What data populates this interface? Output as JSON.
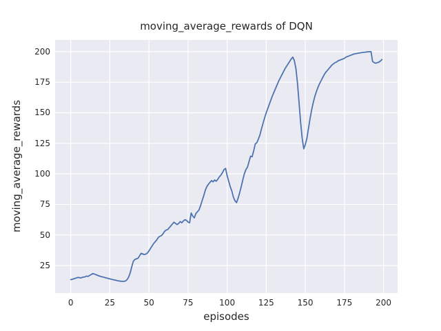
{
  "style": {
    "figure_bg": "#ffffff",
    "axes_bg": "#eaeaf2",
    "grid_color": "#ffffff",
    "text_color": "#262626",
    "line_color": "#4c72b0"
  },
  "chart_data": {
    "type": "line",
    "title": "moving_average_rewards of DQN",
    "xlabel": "episodes",
    "ylabel": "moving_average_rewards",
    "x_ticks": [
      0,
      25,
      50,
      75,
      100,
      125,
      150,
      175,
      200
    ],
    "y_ticks": [
      25,
      50,
      75,
      100,
      125,
      150,
      175,
      200
    ],
    "xlim": [
      -10,
      219
    ],
    "xlim_note": [
      -10,
      209
    ],
    "ylim": [
      2.5,
      209.5
    ],
    "grid": true,
    "legend_position": "none",
    "series": [
      {
        "name": "moving_average_rewards",
        "color": "#4c72b0",
        "x_start": 0,
        "x_step": 1,
        "y": [
          13.5,
          13.8,
          14.2,
          14.6,
          15.1,
          15.3,
          14.9,
          15.1,
          15.6,
          15.7,
          16.4,
          16.1,
          16.9,
          17.6,
          18.4,
          18.1,
          17.6,
          17.1,
          16.6,
          16.1,
          15.8,
          15.5,
          15.1,
          14.8,
          14.4,
          14.1,
          13.8,
          13.5,
          13.2,
          12.9,
          12.6,
          12.4,
          12.2,
          12.1,
          12.1,
          12.4,
          13.5,
          15.5,
          19.0,
          24.0,
          28.5,
          30.0,
          30.5,
          31.0,
          33.0,
          35.0,
          34.5,
          34.0,
          34.4,
          35.2,
          37.0,
          39.0,
          41.0,
          43.0,
          44.5,
          46.0,
          48.0,
          49.0,
          49.5,
          51.0,
          53.0,
          54.0,
          54.5,
          56.0,
          57.5,
          59.0,
          60.5,
          59.5,
          58.5,
          59.5,
          61.0,
          60.0,
          61.5,
          62.5,
          62.0,
          60.5,
          60.0,
          68.0,
          65.5,
          64.0,
          67.5,
          69.0,
          70.5,
          74.0,
          78.0,
          82.0,
          86.5,
          89.5,
          91.5,
          93.0,
          94.5,
          93.5,
          95.0,
          94.0,
          95.5,
          97.5,
          99.0,
          101.0,
          103.5,
          104.5,
          98.5,
          94.0,
          89.5,
          86.0,
          81.0,
          78.0,
          76.5,
          80.0,
          84.5,
          89.5,
          95.0,
          100.0,
          103.5,
          105.5,
          110.0,
          114.5,
          114.0,
          119.0,
          124.5,
          125.5,
          128.5,
          132.0,
          137.0,
          141.5,
          146.0,
          150.0,
          153.5,
          157.0,
          160.5,
          164.0,
          167.0,
          170.0,
          173.0,
          176.0,
          178.5,
          181.0,
          183.5,
          186.0,
          188.0,
          190.0,
          192.0,
          194.0,
          195.5,
          192.5,
          186.0,
          174.0,
          158.0,
          142.0,
          129.0,
          120.5,
          124.0,
          129.0,
          137.0,
          145.0,
          152.0,
          158.0,
          163.0,
          167.0,
          170.5,
          173.5,
          176.0,
          178.5,
          181.0,
          183.0,
          184.5,
          186.0,
          187.5,
          189.0,
          190.0,
          191.0,
          191.5,
          192.5,
          193.0,
          193.5,
          194.0,
          194.5,
          195.5,
          196.0,
          196.5,
          197.0,
          197.5,
          198.0,
          198.3,
          198.5,
          198.8,
          199.0,
          199.2,
          199.4,
          199.5,
          199.7,
          199.8,
          199.9,
          200.0,
          192.0,
          191.0,
          190.5,
          191.0,
          191.3,
          192.3,
          193.5
        ]
      }
    ]
  }
}
